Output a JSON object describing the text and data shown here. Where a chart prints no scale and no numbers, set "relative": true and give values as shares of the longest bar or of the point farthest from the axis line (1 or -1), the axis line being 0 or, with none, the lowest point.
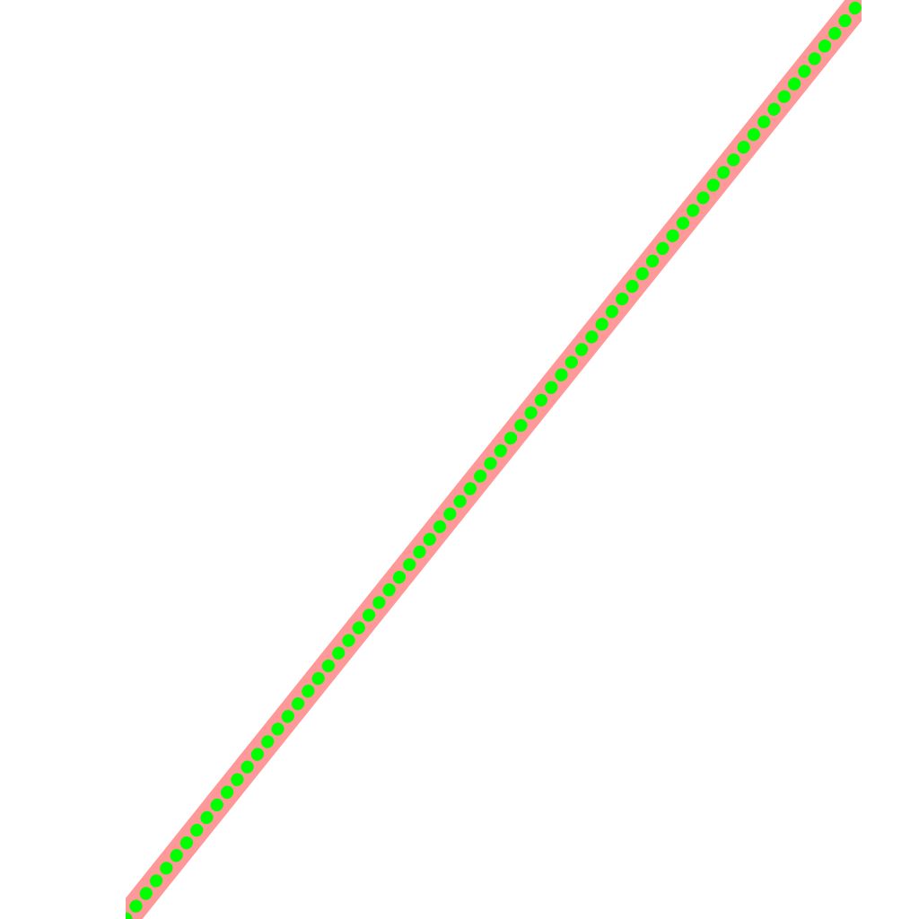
{
  "chart_data": {
    "type": "line",
    "relative": true,
    "categories": [
      null,
      null
    ],
    "series": [
      {
        "color": "#ff9999",
        "values": [
          0,
          1
        ],
        "line_style": "solid"
      },
      {
        "color": "#00ff00",
        "values": [
          0,
          1
        ],
        "line_style": "dotted"
      }
    ]
  }
}
